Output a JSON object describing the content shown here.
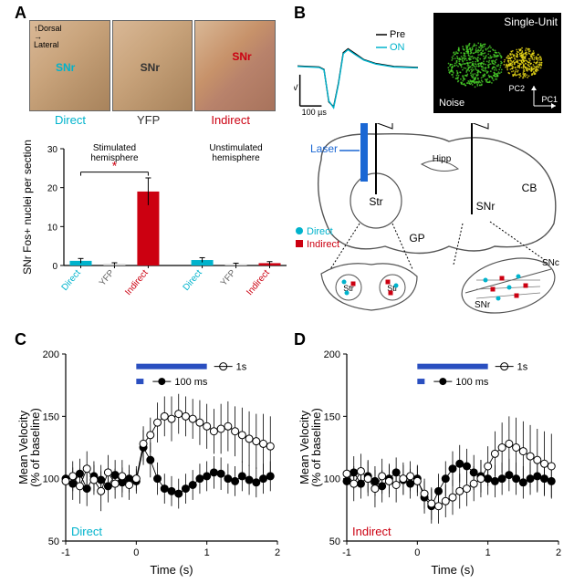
{
  "panelLabels": {
    "A": "A",
    "B": "B",
    "C": "C",
    "D": "D"
  },
  "colors": {
    "direct": "#00b3cc",
    "yfp": "#333333",
    "indirect": "#cc0011",
    "barYfp": "#cccccc",
    "pre": "#000000",
    "on": "#00b3cc",
    "laser": "#1a67d4",
    "singleUnitGreen": "#4cd92b",
    "singleUnitYellow": "#f2e21a",
    "stimBar": "#2a4fc0",
    "openMarker": "#ffffff",
    "closedMarker": "#000000",
    "axis": "#000000",
    "tissue1": "#d9b896",
    "tissue2": "#a8835c"
  },
  "fontSizes": {
    "panelLabel": 18,
    "axisLabel": 13,
    "tick": 11,
    "legend": 12,
    "small": 10
  },
  "panelA": {
    "histologyLabels": [
      "Direct",
      "YFP",
      "Indirect"
    ],
    "histologyColors": [
      "#00b3cc",
      "#333333",
      "#cc0011"
    ],
    "snrSubLabels": [
      "SNr",
      "SNr",
      "SNr"
    ],
    "arrowLabels": {
      "dorsal": "Dorsal",
      "lateral": "Lateral"
    },
    "barChart": {
      "type": "bar",
      "ylabel": "SNr Fos+ nuclei per section",
      "ylim": [
        0,
        30
      ],
      "ytick_step": 10,
      "groupLabels": [
        "Stimulated\nhemisphere",
        "Unstimulated\nhemisphere"
      ],
      "categories": [
        "Direct",
        "YFP",
        "Indirect",
        "Direct",
        "YFP",
        "Indirect"
      ],
      "categoryColors": [
        "#00b3cc",
        "#cccccc",
        "#cc0011",
        "#00b3cc",
        "#cccccc",
        "#cc0011"
      ],
      "categoryLabelColors": [
        "#00b3cc",
        "#666666",
        "#cc0011",
        "#00b3cc",
        "#666666",
        "#cc0011"
      ],
      "values": [
        1.2,
        0.4,
        19,
        1.4,
        0.3,
        0.6
      ],
      "errors": [
        0.6,
        0.3,
        3.5,
        0.6,
        0.3,
        0.4
      ],
      "sigMarker": "*",
      "sigColor": "#cc0011",
      "sigY": 24,
      "sigSpan": [
        0,
        2
      ],
      "bar_width": 0.65,
      "label_fontsize": 12,
      "tick_fontsize": 10
    }
  },
  "panelB": {
    "waveform": {
      "labelsPre": "Pre",
      "labelsOn": "ON",
      "labelPreColor": "#000000",
      "labelOnColor": "#00b3cc",
      "yScale": "150 µV",
      "xScale": "100 µs",
      "preTrace": [
        [
          0,
          0.05
        ],
        [
          0.18,
          0.03
        ],
        [
          0.22,
          -0.02
        ],
        [
          0.26,
          -0.68
        ],
        [
          0.3,
          -0.78
        ],
        [
          0.34,
          -0.3
        ],
        [
          0.38,
          0.32
        ],
        [
          0.42,
          0.4
        ],
        [
          0.48,
          0.3
        ],
        [
          0.55,
          0.18
        ],
        [
          0.65,
          0.1
        ],
        [
          0.8,
          0.04
        ],
        [
          1.0,
          0.02
        ]
      ],
      "onTrace": [
        [
          0,
          0.04
        ],
        [
          0.18,
          0.02
        ],
        [
          0.22,
          -0.03
        ],
        [
          0.26,
          -0.66
        ],
        [
          0.3,
          -0.8
        ],
        [
          0.34,
          -0.32
        ],
        [
          0.38,
          0.3
        ],
        [
          0.42,
          0.38
        ],
        [
          0.48,
          0.28
        ],
        [
          0.55,
          0.17
        ],
        [
          0.65,
          0.09
        ],
        [
          0.8,
          0.03
        ],
        [
          1.0,
          0.01
        ]
      ],
      "scaleBarLen": {
        "x": 0.18,
        "y": 0.35
      }
    },
    "singleUnit": {
      "title": "Single-Unit",
      "clusterNoiseLabel": "Noise",
      "axisPC1": "PC1",
      "axisPC2": "PC2",
      "noiseCenter": [
        0.33,
        0.52
      ],
      "noiseRadius": 0.22,
      "unitCenter": [
        0.7,
        0.5
      ],
      "unitRadius": 0.15,
      "noiseColor": "#4cd92b",
      "unitColor": "#f2e21a",
      "textColor": "#ffffff"
    },
    "diagram": {
      "laserLabel": "Laser",
      "regionLabels": {
        "Str": "Str",
        "GP": "GP",
        "SNr": "SNr",
        "SNc": "SNc",
        "Hipp": "Hipp",
        "CB": "CB"
      },
      "legendDirect": "Direct",
      "legendIndirect": "Indirect"
    }
  },
  "velocityCommon": {
    "type": "scatter-line",
    "xlabel": "Time (s)",
    "ylabel": "Mean Velocity\n(% of baseline)",
    "xlim": [
      -1,
      2
    ],
    "ylim": [
      50,
      200
    ],
    "xtick_step": 1,
    "ytick_step": 50,
    "stim1sLabel": "1s",
    "stim100msLabel": "100 ms",
    "stim1s": {
      "start": 0,
      "end": 1,
      "y": 190
    },
    "stim100ms": {
      "start": 0,
      "end": 0.1,
      "y": 178
    },
    "markerSize": 4,
    "errorBarWidth": 1,
    "label_fontsize": 13,
    "tick_fontsize": 11
  },
  "panelC": {
    "cornerLabel": "Direct",
    "cornerLabelColor": "#00b3cc",
    "series1s": {
      "x": [
        -1,
        -0.9,
        -0.8,
        -0.7,
        -0.6,
        -0.5,
        -0.4,
        -0.3,
        -0.2,
        -0.1,
        0,
        0.1,
        0.2,
        0.3,
        0.4,
        0.5,
        0.6,
        0.7,
        0.8,
        0.9,
        1.0,
        1.1,
        1.2,
        1.3,
        1.4,
        1.5,
        1.6,
        1.7,
        1.8,
        1.9
      ],
      "y": [
        98,
        102,
        94,
        108,
        99,
        90,
        105,
        96,
        102,
        95,
        100,
        128,
        135,
        145,
        150,
        148,
        152,
        150,
        148,
        145,
        142,
        138,
        140,
        142,
        138,
        135,
        132,
        130,
        128,
        126
      ],
      "err": [
        14,
        12,
        14,
        14,
        12,
        16,
        14,
        12,
        13,
        12,
        10,
        14,
        14,
        16,
        16,
        18,
        16,
        16,
        16,
        18,
        18,
        18,
        20,
        20,
        20,
        22,
        22,
        22,
        24,
        24
      ],
      "markerFill": "#ffffff",
      "markerStroke": "#000000"
    },
    "series100ms": {
      "x": [
        -1,
        -0.9,
        -0.8,
        -0.7,
        -0.6,
        -0.5,
        -0.4,
        -0.3,
        -0.2,
        -0.1,
        0,
        0.1,
        0.2,
        0.3,
        0.4,
        0.5,
        0.6,
        0.7,
        0.8,
        0.9,
        1.0,
        1.1,
        1.2,
        1.3,
        1.4,
        1.5,
        1.6,
        1.7,
        1.8,
        1.9
      ],
      "y": [
        100,
        96,
        104,
        92,
        102,
        99,
        94,
        103,
        97,
        100,
        98,
        125,
        115,
        100,
        92,
        90,
        88,
        92,
        95,
        100,
        102,
        105,
        104,
        100,
        98,
        102,
        99,
        97,
        100,
        102
      ],
      "err": [
        12,
        13,
        12,
        14,
        12,
        12,
        13,
        12,
        12,
        11,
        10,
        14,
        14,
        13,
        12,
        12,
        12,
        12,
        12,
        12,
        12,
        13,
        13,
        12,
        12,
        12,
        12,
        12,
        12,
        12
      ],
      "markerFill": "#000000",
      "markerStroke": "#000000"
    }
  },
  "panelD": {
    "cornerLabel": "Indirect",
    "cornerLabelColor": "#cc0011",
    "series1s": {
      "x": [
        -1,
        -0.9,
        -0.8,
        -0.7,
        -0.6,
        -0.5,
        -0.4,
        -0.3,
        -0.2,
        -0.1,
        0,
        0.1,
        0.2,
        0.3,
        0.4,
        0.5,
        0.6,
        0.7,
        0.8,
        0.9,
        1.0,
        1.1,
        1.2,
        1.3,
        1.4,
        1.5,
        1.6,
        1.7,
        1.8,
        1.9
      ],
      "y": [
        104,
        96,
        106,
        100,
        92,
        102,
        98,
        95,
        100,
        102,
        98,
        88,
        80,
        78,
        82,
        85,
        90,
        92,
        96,
        100,
        110,
        120,
        125,
        128,
        125,
        122,
        118,
        115,
        112,
        110
      ],
      "err": [
        14,
        14,
        14,
        14,
        15,
        14,
        13,
        14,
        13,
        12,
        12,
        12,
        13,
        14,
        13,
        14,
        14,
        14,
        14,
        15,
        16,
        18,
        20,
        22,
        24,
        24,
        25,
        25,
        26,
        26
      ],
      "markerFill": "#ffffff",
      "markerStroke": "#000000"
    },
    "series100ms": {
      "x": [
        -1,
        -0.9,
        -0.8,
        -0.7,
        -0.6,
        -0.5,
        -0.4,
        -0.3,
        -0.2,
        -0.1,
        0,
        0.1,
        0.2,
        0.3,
        0.4,
        0.5,
        0.6,
        0.7,
        0.8,
        0.9,
        1.0,
        1.1,
        1.2,
        1.3,
        1.4,
        1.5,
        1.6,
        1.7,
        1.8,
        1.9
      ],
      "y": [
        98,
        105,
        96,
        102,
        98,
        94,
        100,
        105,
        99,
        96,
        100,
        85,
        78,
        90,
        100,
        108,
        112,
        110,
        105,
        102,
        100,
        98,
        100,
        103,
        100,
        97,
        100,
        102,
        100,
        98
      ],
      "err": [
        12,
        13,
        12,
        13,
        12,
        13,
        12,
        12,
        12,
        12,
        11,
        13,
        14,
        14,
        14,
        14,
        15,
        14,
        14,
        13,
        13,
        13,
        13,
        13,
        13,
        13,
        13,
        13,
        13,
        13
      ],
      "markerFill": "#000000",
      "markerStroke": "#000000"
    }
  }
}
